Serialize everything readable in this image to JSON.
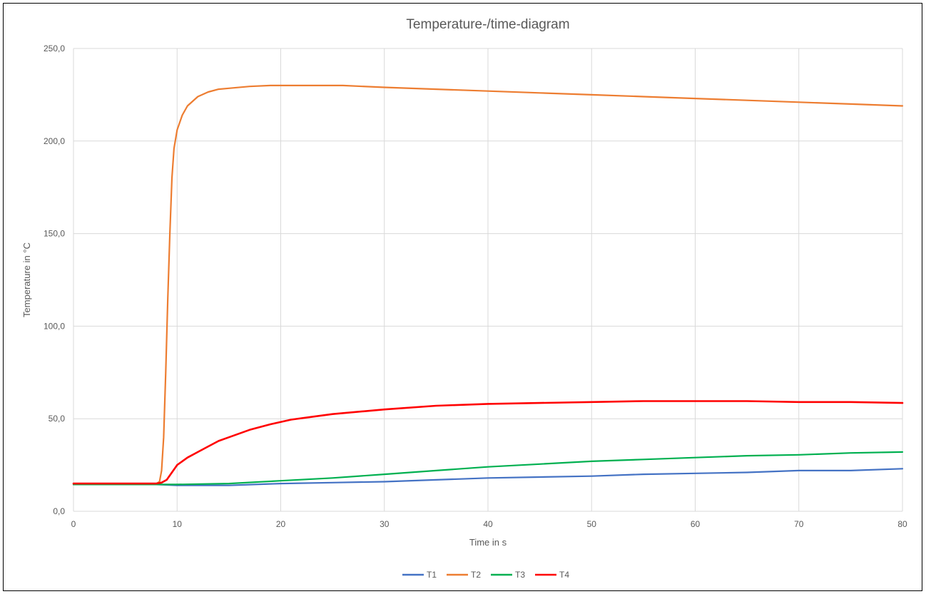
{
  "chart_data": {
    "type": "line",
    "title": "Temperature-/time-diagram",
    "xlabel": "Time in s",
    "ylabel": "Temperature in °C",
    "xlim": [
      0,
      80
    ],
    "ylim": [
      0,
      250
    ],
    "x_ticks": [
      "0",
      "10",
      "20",
      "30",
      "40",
      "50",
      "60",
      "70",
      "80"
    ],
    "y_ticks": [
      "0,0",
      "50,0",
      "100,0",
      "150,0",
      "200,0",
      "250,0"
    ],
    "grid": true,
    "legend": "bottom",
    "series": [
      {
        "name": "T1",
        "color": "#4472C4",
        "x": [
          0,
          8,
          10,
          15,
          20,
          25,
          30,
          35,
          40,
          45,
          50,
          55,
          60,
          65,
          70,
          75,
          80
        ],
        "y": [
          14.5,
          14.5,
          14,
          14,
          15,
          15.5,
          16,
          17,
          18,
          18.5,
          19,
          20,
          20.5,
          21,
          22,
          22,
          23
        ]
      },
      {
        "name": "T2",
        "color": "#ED7D31",
        "x": [
          0,
          8,
          8.3,
          8.5,
          8.7,
          8.9,
          9.1,
          9.3,
          9.5,
          9.7,
          10,
          10.5,
          11,
          12,
          13,
          14,
          15,
          17,
          19,
          22,
          26,
          30,
          35,
          40,
          45,
          50,
          55,
          60,
          65,
          70,
          75,
          80
        ],
        "y": [
          15,
          15,
          16,
          22,
          40,
          75,
          115,
          150,
          180,
          196,
          206,
          214,
          219,
          224,
          226.5,
          228,
          228.5,
          229.5,
          230,
          230,
          230,
          229,
          228,
          227,
          226,
          225,
          224,
          223,
          222,
          221,
          220,
          219
        ]
      },
      {
        "name": "T3",
        "color": "#00B050",
        "x": [
          0,
          8,
          10,
          15,
          20,
          25,
          30,
          35,
          40,
          45,
          50,
          55,
          60,
          65,
          70,
          75,
          80
        ],
        "y": [
          14.5,
          14.5,
          14.5,
          15,
          16.5,
          18,
          20,
          22,
          24,
          25.5,
          27,
          28,
          29,
          30,
          30.5,
          31.5,
          32
        ]
      },
      {
        "name": "T4",
        "color": "#FF0000",
        "x": [
          0,
          8,
          8.5,
          9,
          9.5,
          10,
          11,
          12,
          13,
          14,
          15,
          17,
          19,
          21,
          23,
          25,
          28,
          30,
          35,
          40,
          45,
          50,
          55,
          60,
          65,
          70,
          75,
          80
        ],
        "y": [
          15,
          15,
          15.5,
          17,
          21,
          25,
          29,
          32,
          35,
          38,
          40,
          44,
          47,
          49.5,
          51,
          52.5,
          54,
          55,
          57,
          58,
          58.5,
          59,
          59.5,
          59.5,
          59.5,
          59,
          59,
          58.5
        ]
      }
    ]
  }
}
